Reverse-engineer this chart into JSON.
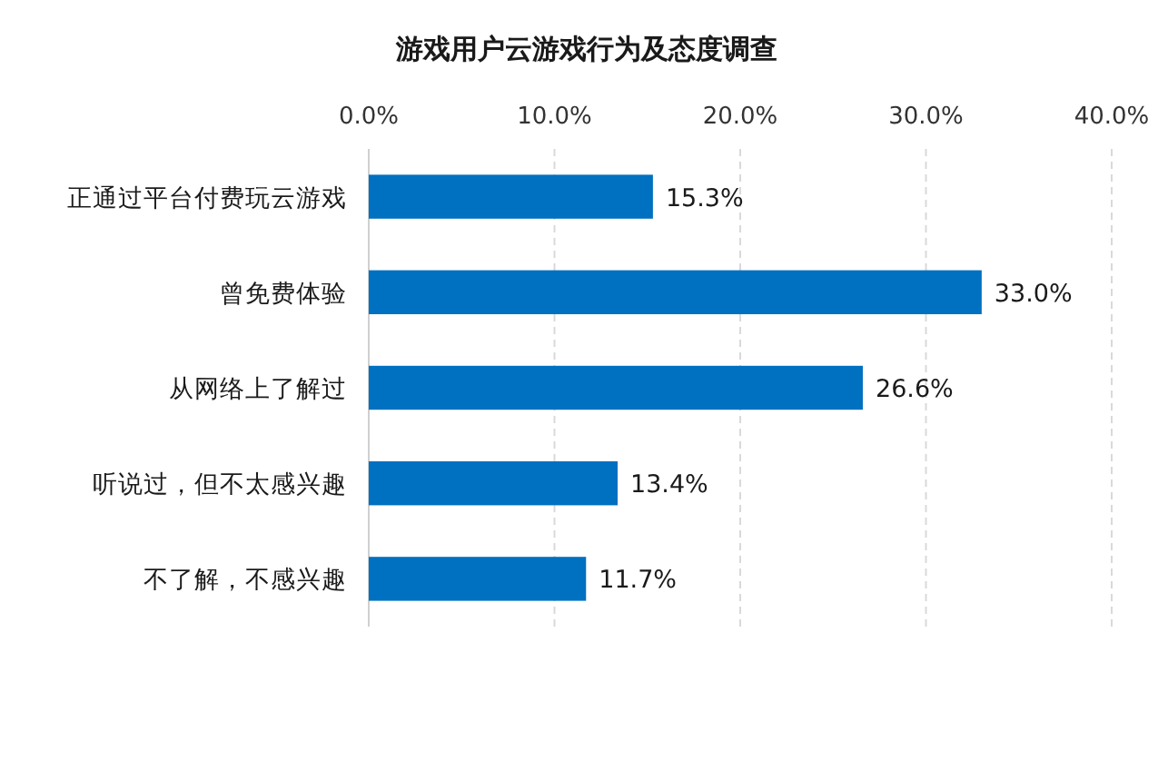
{
  "chart_data": {
    "type": "bar",
    "orientation": "horizontal",
    "title": "游戏用户云游戏行为及态度调查",
    "categories": [
      "正通过平台付费玩云游戏",
      "曾免费体验",
      "从网络上了解过",
      "听说过，但不太感兴趣",
      "不了解，不感兴趣"
    ],
    "values": [
      15.3,
      33.0,
      26.6,
      13.4,
      11.7
    ],
    "color": "#0070c0",
    "value_labels": [
      "15.3%",
      "33.0%",
      "26.6%",
      "13.4%",
      "11.7%"
    ],
    "xlim": [
      0,
      40
    ],
    "xticks": [
      {
        "value": 0,
        "label": "0.0%"
      },
      {
        "value": 10,
        "label": "10.0%"
      },
      {
        "value": 20,
        "label": "20.0%"
      },
      {
        "value": 30,
        "label": "30.0%"
      },
      {
        "value": 40,
        "label": "40.0%"
      }
    ],
    "grid": "x"
  }
}
